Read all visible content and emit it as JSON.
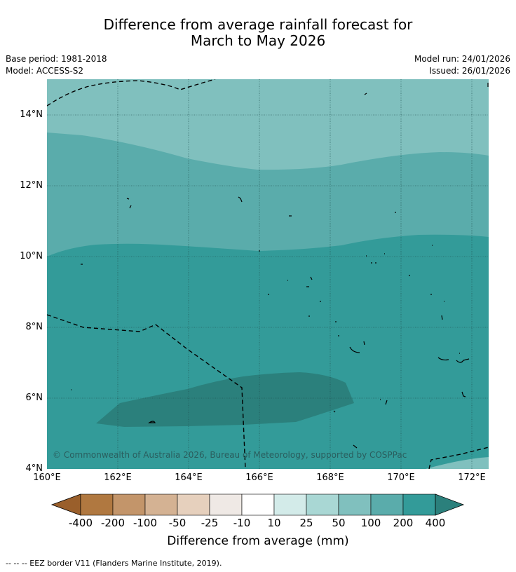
{
  "title_line1": "Difference from average rainfall forecast for",
  "title_line2": "March to May 2026",
  "base_period": "Base period: 1981-2018",
  "model": "Model: ACCESS-S2",
  "model_run": "Model run: 24/01/2026",
  "issued": "Issued: 26/01/2026",
  "copyright": "© Commonwealth of Australia 2026, Bureau of Meteorology, supported by COSPPac",
  "y_ticks": [
    "14°N",
    "12°N",
    "10°N",
    "8°N",
    "6°N",
    "4°N"
  ],
  "x_ticks": [
    "160°E",
    "162°E",
    "164°E",
    "166°E",
    "168°E",
    "170°E",
    "172°E"
  ],
  "colorbar": {
    "title": "Difference from average (mm)",
    "labels": [
      "-400",
      "-200",
      "-100",
      "-50",
      "-25",
      "-10",
      "10",
      "25",
      "50",
      "100",
      "200",
      "400"
    ],
    "colors": [
      "#9a5f2b",
      "#b07840",
      "#c3956a",
      "#d4b293",
      "#e6d0bd",
      "#efe9e5",
      "#ffffff",
      "#d3ebe9",
      "#a9d7d4",
      "#80c0be",
      "#5aacab",
      "#339b99",
      "#2b807c"
    ]
  },
  "legend_note": "--  --  -- EEZ border V11 (Flanders Marine Institute, 2019).",
  "map": {
    "lon_range": [
      160,
      172.5
    ],
    "lat_range": [
      4,
      15
    ],
    "zones": [
      "50 to 100",
      "100 to 200",
      "200 to 400",
      "> 400"
    ]
  }
}
